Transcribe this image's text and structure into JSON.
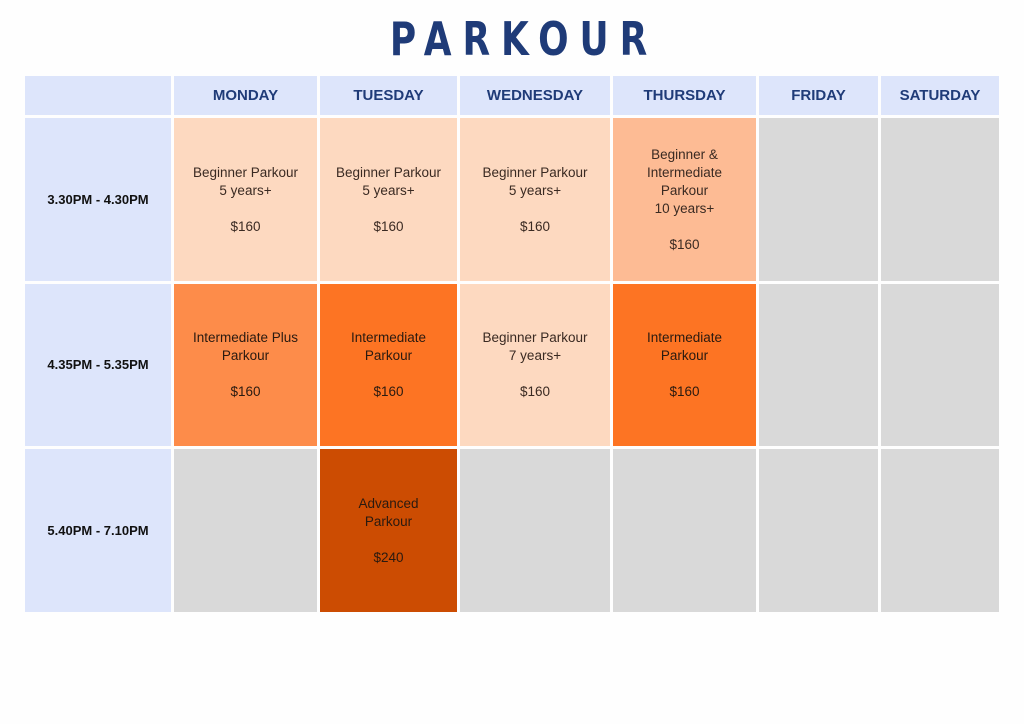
{
  "title": "PARKOUR",
  "days": [
    "MONDAY",
    "TUESDAY",
    "WEDNESDAY",
    "THURSDAY",
    "FRIDAY",
    "SATURDAY"
  ],
  "colors": {
    "header": "#dde5fb",
    "empty": "#d9d9d9",
    "title": "#1f3b78"
  },
  "rows": [
    {
      "time": "3.30PM - 4.30PM",
      "cells": [
        {
          "lines": [
            "Beginner Parkour",
            "5 years+"
          ],
          "price": "$160",
          "color": "#fdd9c0"
        },
        {
          "lines": [
            "Beginner Parkour",
            "5 years+"
          ],
          "price": "$160",
          "color": "#fdd9c0"
        },
        {
          "lines": [
            "Beginner Parkour",
            "5 years+"
          ],
          "price": "$160",
          "color": "#fdd9c0"
        },
        {
          "lines": [
            "Beginner &",
            "Intermediate",
            "Parkour",
            "10 years+"
          ],
          "price": "$160",
          "color": "#fdbb94"
        },
        null,
        null
      ]
    },
    {
      "time": "4.35PM - 5.35PM",
      "cells": [
        {
          "lines": [
            "Intermediate Plus",
            "Parkour"
          ],
          "price": "$160",
          "color": "#fd8c4a"
        },
        {
          "lines": [
            "Intermediate",
            "Parkour"
          ],
          "price": "$160",
          "color": "#fd7423"
        },
        {
          "lines": [
            "Beginner Parkour",
            "7 years+"
          ],
          "price": "$160",
          "color": "#fdd9c0"
        },
        {
          "lines": [
            "Intermediate",
            "Parkour"
          ],
          "price": "$160",
          "color": "#fd7423"
        },
        null,
        null
      ]
    },
    {
      "time": "5.40PM - 7.10PM",
      "cells": [
        null,
        {
          "lines": [
            "Advanced",
            "Parkour"
          ],
          "price": "$240",
          "color": "#cc4c02"
        },
        null,
        null,
        null,
        null
      ]
    }
  ]
}
